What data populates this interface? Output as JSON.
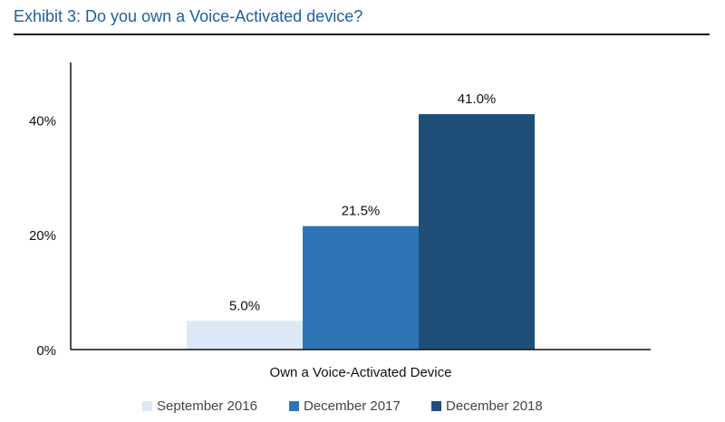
{
  "header": {
    "title": "Exhibit 3: Do you own a Voice-Activated device?"
  },
  "chart_data": {
    "type": "bar",
    "title": "Exhibit 3: Do you own a Voice-Activated device?",
    "categories": [
      "Own a Voice-Activated Device"
    ],
    "series": [
      {
        "name": "September 2016",
        "values": [
          5.0
        ],
        "label": "5.0%",
        "color": "#dce8f5"
      },
      {
        "name": "December 2017",
        "values": [
          21.5
        ],
        "label": "21.5%",
        "color": "#2e75b6"
      },
      {
        "name": "December 2018",
        "values": [
          41.0
        ],
        "label": "41.0%",
        "color": "#1f4e79"
      }
    ],
    "xlabel": "",
    "ylabel": "",
    "ylim": [
      0,
      50
    ],
    "yticks": [
      0,
      20,
      40
    ],
    "ytick_labels": [
      "0%",
      "20%",
      "40%"
    ],
    "grid": false,
    "legend_position": "bottom"
  }
}
